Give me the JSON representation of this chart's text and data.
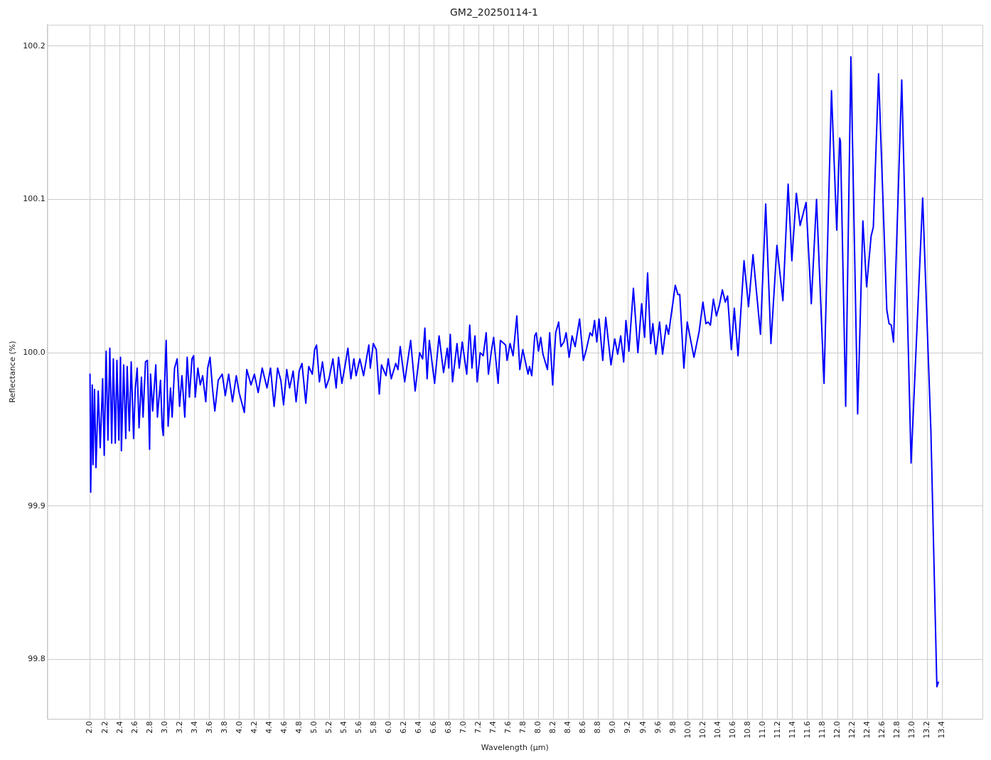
{
  "chart_data": {
    "type": "line",
    "title": "GM2_20250114-1",
    "xlabel": "Wavelength (μm)",
    "ylabel": "Reflectance (%)",
    "x": [
      2.0,
      2.009,
      2.03,
      2.04,
      2.06,
      2.08,
      2.11,
      2.137,
      2.169,
      2.19,
      2.216,
      2.24,
      2.265,
      2.29,
      2.312,
      2.338,
      2.36,
      2.385,
      2.408,
      2.42,
      2.45,
      2.478,
      2.497,
      2.526,
      2.551,
      2.583,
      2.605,
      2.631,
      2.656,
      2.688,
      2.71,
      2.742,
      2.768,
      2.797,
      2.81,
      2.838,
      2.88,
      2.902,
      2.943,
      2.965,
      2.98,
      2.997,
      3.019,
      3.045,
      3.077,
      3.099,
      3.131,
      3.166,
      3.198,
      3.23,
      3.268,
      3.3,
      3.33,
      3.364,
      3.386,
      3.408,
      3.443,
      3.475,
      3.507,
      3.549,
      3.574,
      3.606,
      3.638,
      3.67,
      3.715,
      3.769,
      3.81,
      3.855,
      3.906,
      3.957,
      3.995,
      4.065,
      4.097,
      4.154,
      4.199,
      4.25,
      4.304,
      4.368,
      4.415,
      4.463,
      4.51,
      4.553,
      4.59,
      4.632,
      4.67,
      4.718,
      4.757,
      4.798,
      4.836,
      4.887,
      4.926,
      4.974,
      5.005,
      5.031,
      5.069,
      5.11,
      5.155,
      5.197,
      5.25,
      5.293,
      5.325,
      5.37,
      5.41,
      5.45,
      5.49,
      5.53,
      5.56,
      5.61,
      5.66,
      5.73,
      5.75,
      5.79,
      5.83,
      5.87,
      5.9,
      5.96,
      5.99,
      6.03,
      6.09,
      6.12,
      6.15,
      6.21,
      6.29,
      6.35,
      6.41,
      6.45,
      6.48,
      6.51,
      6.54,
      6.61,
      6.67,
      6.73,
      6.78,
      6.8,
      6.82,
      6.85,
      6.91,
      6.94,
      6.98,
      7.04,
      7.08,
      7.11,
      7.15,
      7.18,
      7.22,
      7.26,
      7.3,
      7.33,
      7.37,
      7.4,
      7.46,
      7.49,
      7.56,
      7.58,
      7.62,
      7.66,
      7.71,
      7.75,
      7.79,
      7.86,
      7.88,
      7.91,
      7.95,
      7.97,
      8.0,
      8.03,
      8.06,
      8.12,
      8.15,
      8.19,
      8.23,
      8.27,
      8.3,
      8.34,
      8.37,
      8.41,
      8.45,
      8.49,
      8.55,
      8.6,
      8.64,
      8.69,
      8.72,
      8.75,
      8.78,
      8.81,
      8.86,
      8.9,
      8.97,
      9.02,
      9.06,
      9.1,
      9.14,
      9.17,
      9.21,
      9.27,
      9.33,
      9.38,
      9.42,
      9.46,
      9.5,
      9.53,
      9.57,
      9.62,
      9.66,
      9.71,
      9.74,
      9.83,
      9.865,
      9.89,
      9.945,
      9.99,
      10.08,
      10.15,
      10.2,
      10.24,
      10.27,
      10.3,
      10.34,
      10.38,
      10.42,
      10.46,
      10.5,
      10.53,
      10.58,
      10.62,
      10.67,
      10.75,
      10.81,
      10.87,
      10.97,
      11.04,
      11.11,
      11.19,
      11.27,
      11.34,
      11.39,
      11.45,
      11.5,
      11.58,
      11.65,
      11.72,
      11.82,
      11.92,
      11.99,
      12.03,
      12.04,
      12.11,
      12.18,
      12.27,
      12.34,
      12.39,
      12.45,
      12.48,
      12.55,
      12.66,
      12.69,
      12.72,
      12.75,
      12.86,
      12.985,
      13.14,
      13.25,
      13.33,
      13.35
    ],
    "series": [
      {
        "color": "#0000ff",
        "values": [
          99.986,
          99.909,
          99.979,
          99.927,
          99.976,
          99.925,
          99.975,
          99.938,
          99.983,
          99.933,
          100.001,
          99.943,
          100.003,
          99.941,
          99.996,
          99.941,
          99.995,
          99.943,
          99.997,
          99.936,
          99.992,
          99.944,
          99.991,
          99.949,
          99.994,
          99.944,
          99.976,
          99.99,
          99.951,
          99.984,
          99.958,
          99.994,
          99.995,
          99.937,
          99.986,
          99.962,
          99.992,
          99.958,
          99.982,
          99.952,
          99.946,
          99.979,
          100.008,
          99.952,
          99.977,
          99.958,
          99.99,
          99.996,
          99.965,
          99.985,
          99.958,
          99.997,
          99.971,
          99.996,
          99.998,
          99.971,
          99.99,
          99.979,
          99.985,
          99.968,
          99.99,
          99.997,
          99.977,
          99.962,
          99.982,
          99.986,
          99.972,
          99.986,
          99.968,
          99.985,
          99.974,
          99.961,
          99.989,
          99.979,
          99.986,
          99.974,
          99.99,
          99.977,
          99.99,
          99.965,
          99.99,
          99.982,
          99.966,
          99.989,
          99.977,
          99.988,
          99.968,
          99.988,
          99.993,
          99.967,
          99.991,
          99.986,
          100.002,
          100.005,
          99.981,
          99.994,
          99.977,
          99.983,
          99.996,
          99.977,
          99.997,
          99.98,
          99.991,
          100.003,
          99.983,
          99.996,
          99.985,
          99.996,
          99.985,
          100.005,
          99.99,
          100.006,
          100.002,
          99.973,
          99.992,
          99.985,
          99.996,
          99.983,
          99.993,
          99.989,
          100.004,
          99.981,
          100.008,
          99.975,
          100.0,
          99.996,
          100.016,
          99.983,
          100.008,
          99.98,
          100.011,
          99.987,
          100.003,
          99.99,
          100.012,
          99.981,
          100.006,
          99.99,
          100.007,
          99.986,
          100.018,
          99.99,
          100.011,
          99.981,
          100.0,
          99.998,
          100.013,
          99.986,
          100.001,
          100.01,
          99.98,
          100.008,
          100.005,
          99.995,
          100.006,
          99.998,
          100.024,
          99.989,
          100.002,
          99.986,
          99.991,
          99.985,
          100.011,
          100.013,
          100.001,
          100.01,
          99.999,
          99.989,
          100.013,
          99.979,
          100.013,
          100.02,
          100.004,
          100.007,
          100.013,
          99.997,
          100.011,
          100.004,
          100.022,
          99.995,
          100.002,
          100.013,
          100.011,
          100.021,
          100.007,
          100.022,
          99.995,
          100.023,
          99.992,
          100.009,
          99.999,
          100.011,
          99.994,
          100.021,
          100.001,
          100.042,
          100.0,
          100.032,
          100.01,
          100.052,
          100.006,
          100.019,
          99.999,
          100.02,
          99.999,
          100.018,
          100.012,
          100.044,
          100.038,
          100.038,
          99.99,
          100.02,
          99.997,
          100.014,
          100.033,
          100.019,
          100.02,
          100.018,
          100.035,
          100.024,
          100.031,
          100.041,
          100.033,
          100.037,
          100.002,
          100.029,
          99.998,
          100.06,
          100.03,
          100.064,
          100.012,
          100.097,
          100.006,
          100.07,
          100.034,
          100.11,
          100.06,
          100.104,
          100.083,
          100.098,
          100.032,
          100.1,
          99.98,
          100.171,
          100.08,
          100.14,
          100.138,
          99.965,
          100.193,
          99.96,
          100.086,
          100.043,
          100.076,
          100.082,
          100.182,
          100.028,
          100.019,
          100.018,
          100.007,
          100.178,
          99.928,
          100.101,
          99.949,
          99.782,
          99.785
        ]
      }
    ],
    "xlim": [
      1.43,
      13.94
    ],
    "ylim": [
      99.761,
      100.214
    ],
    "xticks": [
      {
        "value": 2.0,
        "label": "2.0"
      },
      {
        "value": 2.2,
        "label": "2.2"
      },
      {
        "value": 2.4,
        "label": "2.4"
      },
      {
        "value": 2.6,
        "label": "2.6"
      },
      {
        "value": 2.8,
        "label": "2.8"
      },
      {
        "value": 3.0,
        "label": "3.0"
      },
      {
        "value": 3.2,
        "label": "3.2"
      },
      {
        "value": 3.4,
        "label": "3.4"
      },
      {
        "value": 3.6,
        "label": "3.6"
      },
      {
        "value": 3.8,
        "label": "3.8"
      },
      {
        "value": 4.0,
        "label": "4.0"
      },
      {
        "value": 4.2,
        "label": "4.2"
      },
      {
        "value": 4.4,
        "label": "4.4"
      },
      {
        "value": 4.6,
        "label": "4.6"
      },
      {
        "value": 4.8,
        "label": "4.8"
      },
      {
        "value": 5.0,
        "label": "5.0"
      },
      {
        "value": 5.2,
        "label": "5.2"
      },
      {
        "value": 5.4,
        "label": "5.4"
      },
      {
        "value": 5.6,
        "label": "5.6"
      },
      {
        "value": 5.8,
        "label": "5.8"
      },
      {
        "value": 6.0,
        "label": "6.0"
      },
      {
        "value": 6.2,
        "label": "6.2"
      },
      {
        "value": 6.4,
        "label": "6.4"
      },
      {
        "value": 6.6,
        "label": "6.6"
      },
      {
        "value": 6.8,
        "label": "6.8"
      },
      {
        "value": 7.0,
        "label": "7.0"
      },
      {
        "value": 7.2,
        "label": "7.2"
      },
      {
        "value": 7.4,
        "label": "7.4"
      },
      {
        "value": 7.6,
        "label": "7.6"
      },
      {
        "value": 7.8,
        "label": "7.8"
      },
      {
        "value": 8.0,
        "label": "8.0"
      },
      {
        "value": 8.2,
        "label": "8.2"
      },
      {
        "value": 8.4,
        "label": "8.4"
      },
      {
        "value": 8.6,
        "label": "8.6"
      },
      {
        "value": 8.8,
        "label": "8.8"
      },
      {
        "value": 9.0,
        "label": "9.0"
      },
      {
        "value": 9.2,
        "label": "9.2"
      },
      {
        "value": 9.4,
        "label": "9.4"
      },
      {
        "value": 9.6,
        "label": "9.6"
      },
      {
        "value": 9.8,
        "label": "9.8"
      },
      {
        "value": 10.0,
        "label": "10.0"
      },
      {
        "value": 10.2,
        "label": "10.2"
      },
      {
        "value": 10.4,
        "label": "10.4"
      },
      {
        "value": 10.6,
        "label": "10.6"
      },
      {
        "value": 10.8,
        "label": "10.8"
      },
      {
        "value": 11.0,
        "label": "11.0"
      },
      {
        "value": 11.2,
        "label": "11.2"
      },
      {
        "value": 11.4,
        "label": "11.4"
      },
      {
        "value": 11.6,
        "label": "11.6"
      },
      {
        "value": 11.8,
        "label": "11.8"
      },
      {
        "value": 12.0,
        "label": "12.0"
      },
      {
        "value": 12.2,
        "label": "12.2"
      },
      {
        "value": 12.4,
        "label": "12.4"
      },
      {
        "value": 12.6,
        "label": "12.6"
      },
      {
        "value": 12.8,
        "label": "12.8"
      },
      {
        "value": 13.0,
        "label": "13.0"
      },
      {
        "value": 13.2,
        "label": "13.2"
      },
      {
        "value": 13.4,
        "label": "13.4"
      }
    ],
    "yticks": [
      99.8,
      99.9,
      {
        "value": 100,
        "label": "100.0"
      },
      100.1,
      100.2
    ],
    "grid": true,
    "legend": false,
    "marker": "none",
    "line_style": "solid"
  }
}
